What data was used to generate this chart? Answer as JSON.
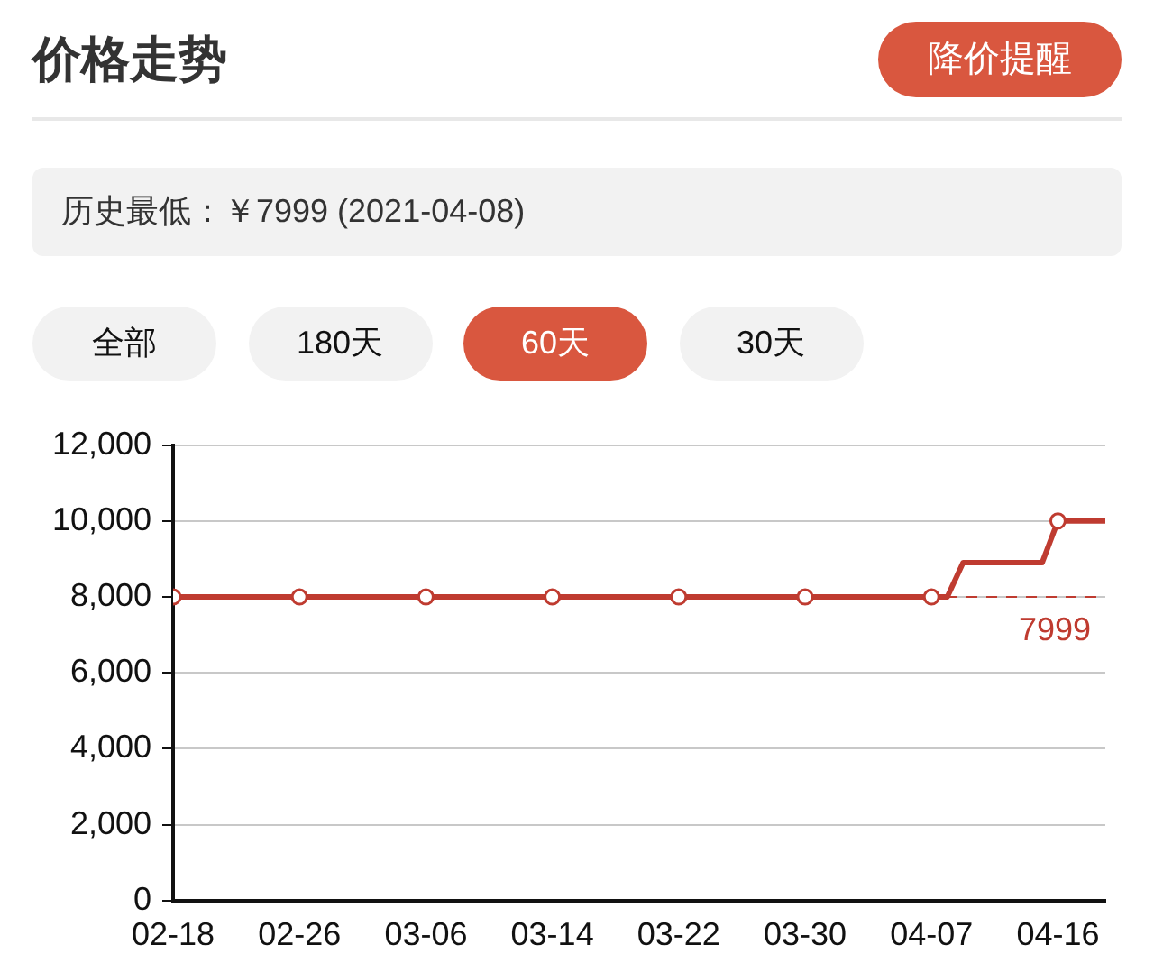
{
  "chart_data": {
    "type": "line",
    "title": "价格走势",
    "annotations": [
      "降价提醒",
      "历史最低：￥7999 (2021-04-08)",
      "全部",
      "180天",
      "60天",
      "30天"
    ],
    "series": [
      {
        "color": "#bf3b30",
        "x": [
          "--02-18",
          "--02-26",
          "--03-06",
          "--03-14",
          "--03-22",
          "--03-30",
          "--04-07",
          "--04-08",
          "--04-09",
          "--04-14",
          "--04-15",
          "--04-18"
        ],
        "values": [
          7999,
          7999,
          7999,
          7999,
          7999,
          7999,
          7999,
          7999,
          8900,
          8900,
          10000,
          10000
        ]
      }
    ],
    "xlim": [
      "--02-18",
      "--04-18"
    ],
    "xticks": [
      {
        "value": "--02-18",
        "label": "02-18"
      },
      {
        "value": "--02-26",
        "label": "02-26"
      },
      {
        "value": "--03-06",
        "label": "03-06"
      },
      {
        "value": "--03-14",
        "label": "03-14"
      },
      {
        "value": "--03-22",
        "label": "03-22"
      },
      {
        "value": "--03-30",
        "label": "03-30"
      },
      {
        "value": "--04-07",
        "label": "04-07"
      },
      {
        "value": "--04-15",
        "label": "04-16"
      }
    ],
    "ylim": [
      0,
      12000
    ],
    "yticks": [
      0,
      {
        "value": 2000,
        "label": "2,000"
      },
      {
        "value": 4000,
        "label": "4,000"
      },
      {
        "value": 6000,
        "label": "6,000"
      },
      {
        "value": 8000,
        "label": "8,000"
      },
      {
        "value": 10000,
        "label": "10,000"
      },
      {
        "value": 12000,
        "label": "12,000"
      }
    ],
    "ref_lines": [
      {
        "axis": "y",
        "value": 7999,
        "label": "7999",
        "color": "#bf3b30",
        "line_style": "dashed"
      }
    ],
    "grid": "y",
    "marker": "circle",
    "line_style": "solid",
    "legend": false
  }
}
